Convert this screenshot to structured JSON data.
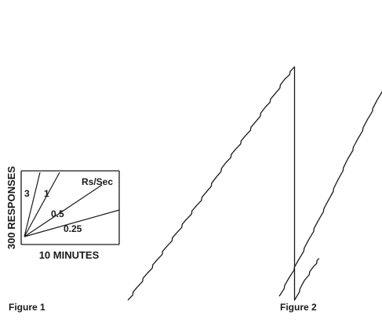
{
  "figures": {
    "figure1": {
      "caption": "Figure 1"
    },
    "figure2": {
      "caption": "Figure 2"
    }
  },
  "scale_legend": {
    "y_axis_label": "300 RESPONSES",
    "x_axis_label": "10 MINUTES",
    "rate_units": "Rs/Sec",
    "rate_labels": [
      "3",
      "1",
      "0.5",
      "0.25"
    ]
  },
  "chart_data": [
    {
      "type": "line",
      "title": "",
      "xlabel": "10 MINUTES",
      "ylabel": "300 RESPONSES",
      "grid": false,
      "legend": "none",
      "series": [
        {
          "x": [
            0,
            1,
            2,
            3,
            4,
            5,
            6,
            7,
            8,
            9,
            10,
            11,
            12,
            13,
            14,
            15,
            16,
            17,
            17,
            18,
            19,
            19.5
          ],
          "y": [
            0,
            55,
            110,
            165,
            220,
            275,
            330,
            385,
            440,
            500,
            560,
            615,
            670,
            725,
            785,
            840,
            900,
            950,
            0,
            80,
            140,
            170
          ]
        }
      ]
    },
    {
      "type": "line",
      "title": "",
      "xlabel": "10 MINUTES",
      "ylabel": "300 RESPONSES",
      "grid": false,
      "legend": "none",
      "series": [
        {
          "x": [
            0,
            1,
            2,
            3,
            4,
            5,
            6,
            7,
            8,
            9,
            10,
            11,
            12,
            12,
            13,
            14,
            15,
            16
          ],
          "y": [
            0,
            75,
            150,
            230,
            310,
            390,
            475,
            560,
            640,
            720,
            800,
            880,
            950,
            0,
            80,
            160,
            240,
            300
          ]
        }
      ]
    }
  ]
}
